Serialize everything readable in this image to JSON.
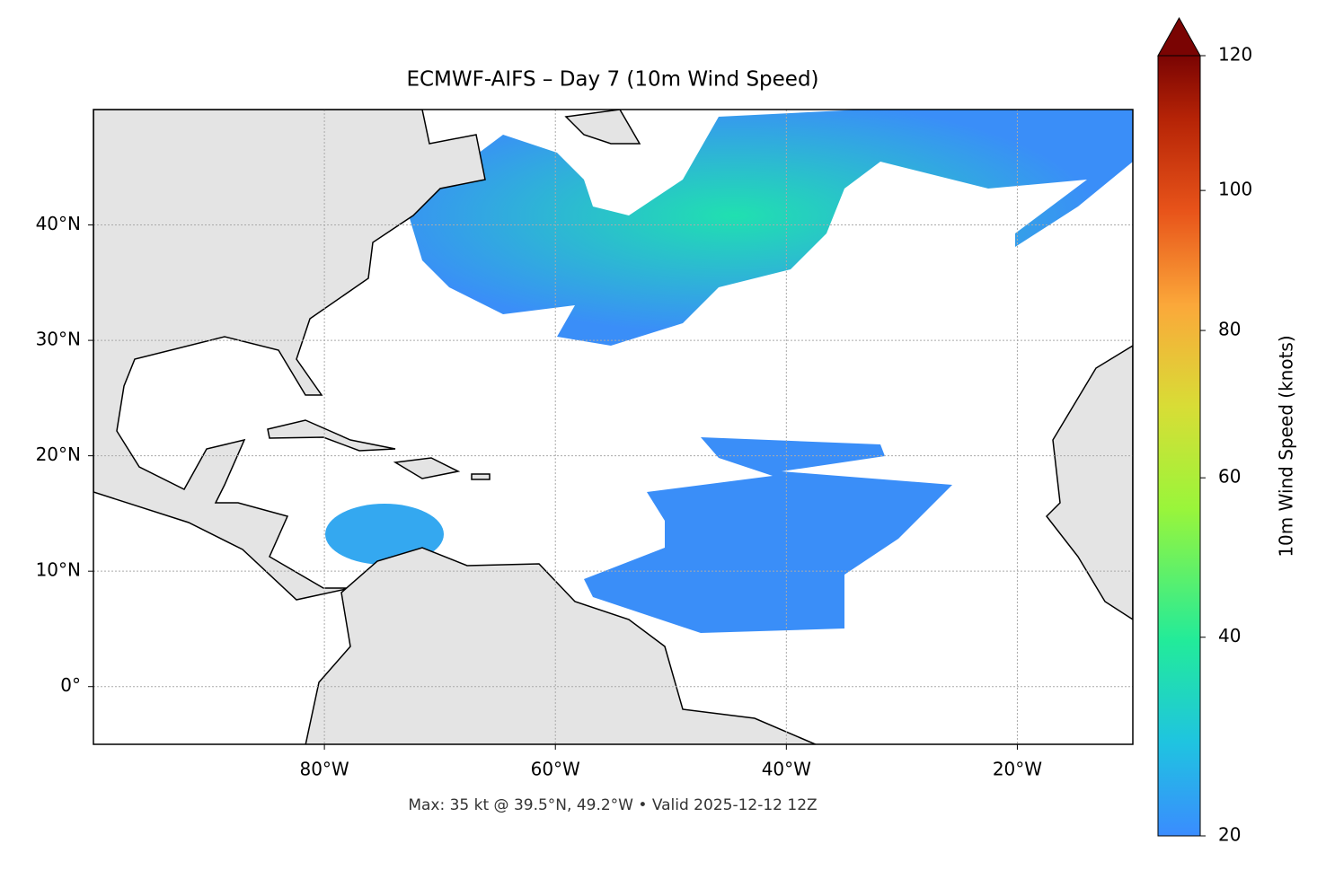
{
  "title": "ECMWF-AIFS – Day 7 (10m Wind Speed)",
  "footnote": "Max: 35 kt @ 39.5°N, 49.2°W • Valid 2025-12-12 12Z",
  "map": {
    "xlim": [
      -100,
      -10
    ],
    "ylim": [
      -5,
      50
    ],
    "xticks": [
      {
        "value": -80,
        "label": "80°W"
      },
      {
        "value": -60,
        "label": "60°W"
      },
      {
        "value": -40,
        "label": "40°W"
      },
      {
        "value": -20,
        "label": "20°W"
      }
    ],
    "yticks": [
      {
        "value": 0,
        "label": "0°"
      },
      {
        "value": 10,
        "label": "10°N"
      },
      {
        "value": 20,
        "label": "20°N"
      },
      {
        "value": 30,
        "label": "30°N"
      },
      {
        "value": 40,
        "label": "40°N"
      }
    ],
    "grid": true
  },
  "colorbar": {
    "label": "10m Wind Speed (knots)",
    "lim": [
      20,
      120
    ],
    "ticks": [
      20,
      40,
      60,
      80,
      100,
      120
    ]
  }
}
